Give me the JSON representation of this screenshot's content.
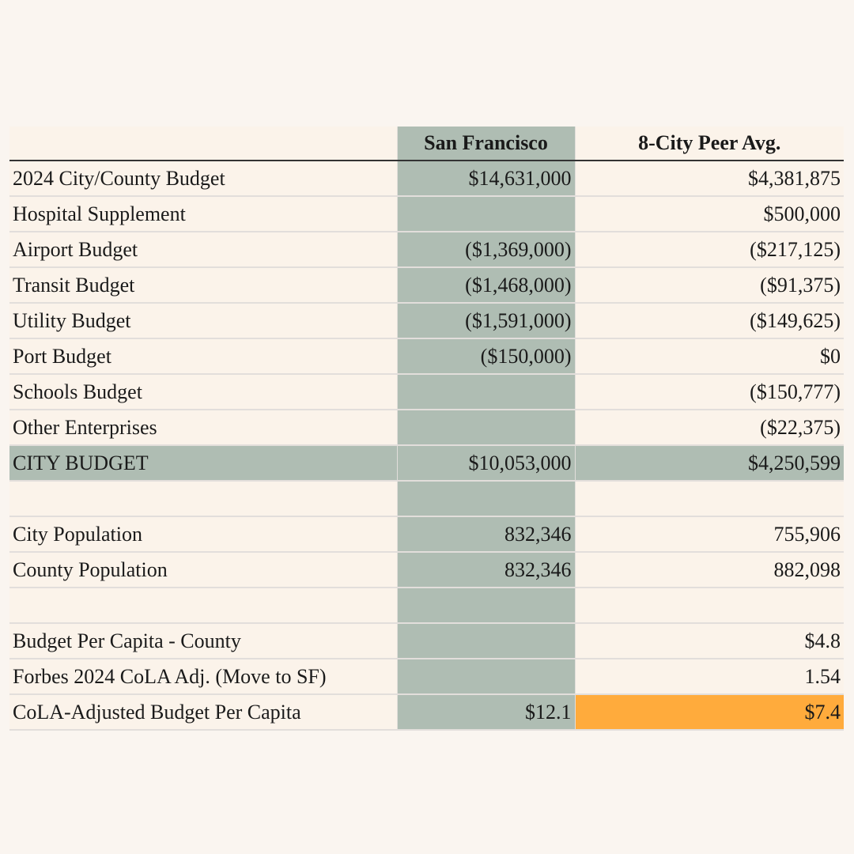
{
  "colors": {
    "sf_column": "#afbdb3",
    "highlight": "#ffab3c",
    "background": "#faf5f0"
  },
  "header": {
    "label": "",
    "san_francisco": "San Francisco",
    "peer_avg": "8-City Peer Avg."
  },
  "rows": [
    {
      "label": "2024 City/County Budget",
      "sf": "$14,631,000",
      "peer": "$4,381,875"
    },
    {
      "label": "Hospital Supplement",
      "sf": "",
      "peer": "$500,000"
    },
    {
      "label": "Airport Budget",
      "sf": "($1,369,000)",
      "peer": "($217,125)"
    },
    {
      "label": "Transit Budget",
      "sf": "($1,468,000)",
      "peer": "($91,375)"
    },
    {
      "label": "Utility Budget",
      "sf": "($1,591,000)",
      "peer": "($149,625)"
    },
    {
      "label": "Port Budget",
      "sf": "($150,000)",
      "peer": "$0"
    },
    {
      "label": "Schools Budget",
      "sf": "",
      "peer": "($150,777)"
    },
    {
      "label": "Other Enterprises",
      "sf": "",
      "peer": "($22,375)"
    },
    {
      "label": "CITY BUDGET",
      "sf": "$10,053,000",
      "peer": "$4,250,599",
      "total": true
    },
    {
      "label": "",
      "sf": "",
      "peer": ""
    },
    {
      "label": "City Population",
      "sf": "832,346",
      "peer": "755,906"
    },
    {
      "label": "County Population",
      "sf": "832,346",
      "peer": "882,098"
    },
    {
      "label": "",
      "sf": "",
      "peer": ""
    },
    {
      "label": "Budget Per Capita - County",
      "sf": "",
      "peer": "$4.8"
    },
    {
      "label": "Forbes 2024 CoLA Adj. (Move to SF)",
      "sf": "",
      "peer": "1.54"
    },
    {
      "label": "CoLA-Adjusted Budget Per Capita",
      "sf": "$12.1",
      "peer": "$7.4",
      "highlight": true
    }
  ]
}
